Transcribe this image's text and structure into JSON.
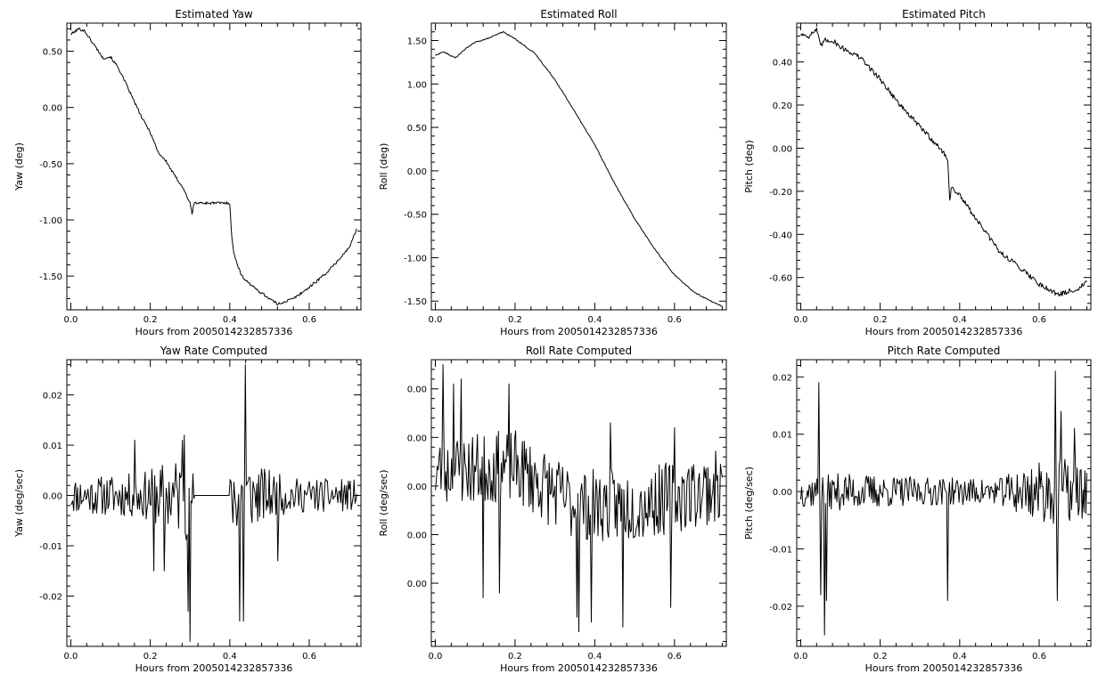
{
  "chart_data": [
    {
      "type": "line",
      "title": "Estimated Yaw",
      "xlabel": "Hours from 2005014232857336",
      "ylabel": "Yaw (deg)",
      "xlim": [
        -0.01,
        0.73
      ],
      "ylim": [
        -1.8,
        0.75
      ],
      "x_ticks": [
        0.0,
        0.2,
        0.4,
        0.6
      ],
      "x_tick_labels": [
        "0.0",
        "0.2",
        "0.4",
        "0.6"
      ],
      "y_ticks": [
        0.5,
        0.0,
        -0.5,
        -1.0,
        -1.5
      ],
      "y_tick_labels": [
        "0.50",
        "0.00",
        "-0.50",
        "-1.00",
        "-1.50"
      ],
      "series": [
        {
          "x": [
            0.0,
            0.02,
            0.035,
            0.05,
            0.07,
            0.08,
            0.1,
            0.12,
            0.14,
            0.16,
            0.18,
            0.2,
            0.22,
            0.24,
            0.26,
            0.28,
            0.3,
            0.305,
            0.31,
            0.4,
            0.405,
            0.41,
            0.43,
            0.46,
            0.5,
            0.52,
            0.56,
            0.6,
            0.65,
            0.7,
            0.72
          ],
          "y": [
            0.65,
            0.7,
            0.68,
            0.6,
            0.5,
            0.44,
            0.45,
            0.35,
            0.2,
            0.05,
            -0.1,
            -0.22,
            -0.4,
            -0.48,
            -0.6,
            -0.7,
            -0.85,
            -0.95,
            -0.85,
            -0.85,
            -1.15,
            -1.3,
            -1.5,
            -1.6,
            -1.7,
            -1.75,
            -1.7,
            -1.6,
            -1.45,
            -1.25,
            -1.08
          ],
          "noise": 0.012
        }
      ]
    },
    {
      "type": "line",
      "title": "Estimated Roll",
      "xlabel": "Hours from 2005014232857336",
      "ylabel": "Roll (deg)",
      "xlim": [
        -0.01,
        0.73
      ],
      "ylim": [
        -1.6,
        1.7
      ],
      "x_ticks": [
        0.0,
        0.2,
        0.4,
        0.6
      ],
      "x_tick_labels": [
        "0.0",
        "0.2",
        "0.4",
        "0.6"
      ],
      "y_ticks": [
        1.5,
        1.0,
        0.5,
        0.0,
        -0.5,
        -1.0,
        -1.5
      ],
      "y_tick_labels": [
        "1.50",
        "1.00",
        "0.50",
        "0.00",
        "-0.50",
        "-1.00",
        "-1.50"
      ],
      "series": [
        {
          "x": [
            0.0,
            0.02,
            0.05,
            0.08,
            0.1,
            0.13,
            0.16,
            0.17,
            0.2,
            0.25,
            0.3,
            0.35,
            0.4,
            0.45,
            0.5,
            0.55,
            0.6,
            0.65,
            0.7,
            0.72
          ],
          "y": [
            1.33,
            1.37,
            1.3,
            1.42,
            1.48,
            1.52,
            1.58,
            1.6,
            1.52,
            1.35,
            1.05,
            0.68,
            0.3,
            -0.15,
            -0.55,
            -0.9,
            -1.2,
            -1.4,
            -1.52,
            -1.56
          ],
          "noise": 0.006
        }
      ]
    },
    {
      "type": "line",
      "title": "Estimated Pitch",
      "xlabel": "Hours from 2005014232857336",
      "ylabel": "Pitch (deg)",
      "xlim": [
        -0.01,
        0.73
      ],
      "ylim": [
        -0.75,
        0.58
      ],
      "x_ticks": [
        0.0,
        0.2,
        0.4,
        0.6
      ],
      "x_tick_labels": [
        "0.0",
        "0.2",
        "0.4",
        "0.6"
      ],
      "y_ticks": [
        0.4,
        0.2,
        0.0,
        -0.2,
        -0.4,
        -0.6
      ],
      "y_tick_labels": [
        "0.40",
        "0.20",
        "0.00",
        "-0.20",
        "-0.40",
        "-0.60"
      ],
      "series": [
        {
          "x": [
            0.0,
            0.02,
            0.04,
            0.05,
            0.06,
            0.08,
            0.1,
            0.15,
            0.2,
            0.25,
            0.3,
            0.35,
            0.37,
            0.375,
            0.38,
            0.4,
            0.45,
            0.5,
            0.55,
            0.6,
            0.65,
            0.7,
            0.72
          ],
          "y": [
            0.53,
            0.52,
            0.55,
            0.47,
            0.5,
            0.5,
            0.47,
            0.42,
            0.32,
            0.2,
            0.1,
            0.0,
            -0.05,
            -0.24,
            -0.18,
            -0.22,
            -0.35,
            -0.48,
            -0.55,
            -0.63,
            -0.68,
            -0.65,
            -0.62
          ],
          "noise": 0.012
        }
      ]
    },
    {
      "type": "line",
      "title": "Yaw Rate Computed",
      "xlabel": "Hours from 2005014232857336",
      "ylabel": "Yaw (deg/sec)",
      "xlim": [
        -0.01,
        0.73
      ],
      "ylim": [
        -0.03,
        0.027
      ],
      "x_ticks": [
        0.0,
        0.2,
        0.4,
        0.6
      ],
      "x_tick_labels": [
        "0.0",
        "0.2",
        "0.4",
        "0.6"
      ],
      "y_ticks": [
        0.02,
        0.01,
        0.0,
        -0.01,
        -0.02
      ],
      "y_tick_labels": [
        "0.02",
        "0.01",
        "0.00",
        "-0.01",
        "-0.02"
      ],
      "series": [
        {
          "x_start": 0.0,
          "x_end": 0.72,
          "n": 300,
          "seed": 11,
          "baseline": 0.0,
          "amplitude": 0.0035,
          "flat": [
            0.31,
            0.4
          ],
          "envelope": [
            [
              0.0,
              1.0
            ],
            [
              0.18,
              1.3
            ],
            [
              0.26,
              2.2
            ],
            [
              0.3,
              2.6
            ],
            [
              0.31,
              1.0
            ],
            [
              0.4,
              1.0
            ],
            [
              0.41,
              2.5
            ],
            [
              0.46,
              1.8
            ],
            [
              0.55,
              1.0
            ],
            [
              0.72,
              0.9
            ]
          ],
          "spikes": [
            [
              0.3,
              -0.029
            ],
            [
              0.285,
              0.012
            ],
            [
              0.295,
              -0.023
            ],
            [
              0.44,
              0.026
            ],
            [
              0.425,
              -0.025
            ],
            [
              0.435,
              -0.025
            ],
            [
              0.21,
              -0.015
            ],
            [
              0.235,
              -0.015
            ],
            [
              0.16,
              0.011
            ],
            [
              0.52,
              -0.013
            ],
            [
              0.28,
              0.011
            ]
          ]
        }
      ]
    },
    {
      "type": "line",
      "title": "Roll Rate Computed",
      "xlabel": "Hours from 2005014232857336",
      "ylabel": "Roll (deg/sec)",
      "xlim": [
        -0.01,
        0.73
      ],
      "ylim": [
        -0.0033,
        0.0026
      ],
      "x_ticks": [
        0.0,
        0.2,
        0.4,
        0.6
      ],
      "x_tick_labels": [
        "0.0",
        "0.2",
        "0.4",
        "0.6"
      ],
      "y_ticks": [
        0.002,
        0.001,
        0.0,
        -0.001,
        -0.002
      ],
      "y_tick_labels": [
        "0.00",
        "0.00",
        "0.00",
        "0.00",
        "0.00"
      ],
      "series": [
        {
          "x_start": 0.0,
          "x_end": 0.72,
          "n": 300,
          "seed": 23,
          "baseline": 0.0,
          "amplitude": 0.00075,
          "trend": [
            [
              0.0,
              0.0003
            ],
            [
              0.2,
              0.0004
            ],
            [
              0.35,
              -0.0004
            ],
            [
              0.5,
              -0.0004
            ],
            [
              0.72,
              0.0
            ]
          ],
          "spikes": [
            [
              0.02,
              0.0025
            ],
            [
              0.045,
              0.0021
            ],
            [
              0.065,
              0.0022
            ],
            [
              0.12,
              -0.0023
            ],
            [
              0.185,
              0.0021
            ],
            [
              0.16,
              -0.0022
            ],
            [
              0.355,
              -0.0027
            ],
            [
              0.36,
              -0.003
            ],
            [
              0.39,
              -0.0028
            ],
            [
              0.47,
              -0.0029
            ],
            [
              0.44,
              0.0013
            ],
            [
              0.59,
              -0.0025
            ],
            [
              0.6,
              0.0012
            ]
          ]
        }
      ]
    },
    {
      "type": "line",
      "title": "Pitch Rate Computed",
      "xlabel": "Hours from 2005014232857336",
      "ylabel": "Pitch (deg/sec)",
      "xlim": [
        -0.01,
        0.73
      ],
      "ylim": [
        -0.027,
        0.023
      ],
      "x_ticks": [
        0.0,
        0.2,
        0.4,
        0.6
      ],
      "x_tick_labels": [
        "0.0",
        "0.2",
        "0.4",
        "0.6"
      ],
      "y_ticks": [
        0.02,
        0.01,
        0.0,
        -0.01,
        -0.02
      ],
      "y_tick_labels": [
        "0.02",
        "0.01",
        "0.00",
        "-0.01",
        "-0.02"
      ],
      "series": [
        {
          "x_start": 0.0,
          "x_end": 0.72,
          "n": 300,
          "seed": 37,
          "baseline": 0.0,
          "amplitude": 0.0025,
          "envelope": [
            [
              0.0,
              1.1
            ],
            [
              0.1,
              1.3
            ],
            [
              0.3,
              1.0
            ],
            [
              0.5,
              0.9
            ],
            [
              0.55,
              1.8
            ],
            [
              0.65,
              2.4
            ],
            [
              0.72,
              2.0
            ]
          ],
          "spikes": [
            [
              0.045,
              0.019
            ],
            [
              0.05,
              -0.018
            ],
            [
              0.06,
              -0.025
            ],
            [
              0.065,
              -0.019
            ],
            [
              0.37,
              -0.019
            ],
            [
              0.64,
              0.021
            ],
            [
              0.645,
              -0.019
            ],
            [
              0.655,
              0.014
            ],
            [
              0.69,
              0.011
            ]
          ]
        }
      ]
    }
  ]
}
